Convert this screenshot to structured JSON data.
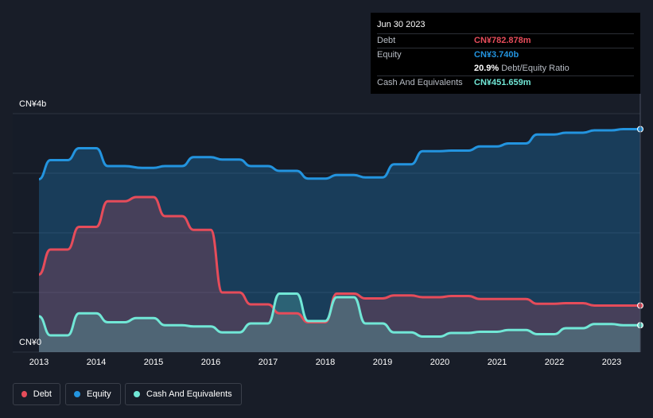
{
  "tooltip": {
    "date": "Jun 30 2023",
    "debt_label": "Debt",
    "debt_value": "CN¥782.878m",
    "equity_label": "Equity",
    "equity_value": "CN¥3.740b",
    "ratio_value": "20.9%",
    "ratio_label": "Debt/Equity Ratio",
    "cash_label": "Cash And Equivalents",
    "cash_value": "CN¥451.659m"
  },
  "colors": {
    "debt": "#e64c5a",
    "equity": "#2394df",
    "cash": "#71e7d6",
    "grid": "#2c3340"
  },
  "legend": {
    "debt": "Debt",
    "equity": "Equity",
    "cash": "Cash And Equivalents"
  },
  "chart_data": {
    "type": "area",
    "y_top_label": "CN¥4b",
    "y_bottom_label": "CN¥0",
    "ylim": [
      0,
      4.0
    ],
    "xlim": [
      2013.0,
      2023.5
    ],
    "x_ticks": [
      "2013",
      "2014",
      "2015",
      "2016",
      "2017",
      "2018",
      "2019",
      "2020",
      "2021",
      "2022",
      "2023"
    ],
    "series": [
      {
        "name": "Equity",
        "x": [
          2013.0,
          2013.2,
          2013.5,
          2013.7,
          2014.0,
          2014.2,
          2014.5,
          2014.8,
          2015.0,
          2015.2,
          2015.5,
          2015.7,
          2016.0,
          2016.2,
          2016.5,
          2016.7,
          2017.0,
          2017.2,
          2017.5,
          2017.7,
          2018.0,
          2018.2,
          2018.5,
          2018.7,
          2019.0,
          2019.2,
          2019.5,
          2019.7,
          2020.0,
          2020.2,
          2020.5,
          2020.7,
          2021.0,
          2021.2,
          2021.5,
          2021.7,
          2022.0,
          2022.2,
          2022.5,
          2022.7,
          2023.0,
          2023.2,
          2023.5
        ],
        "values": [
          2.9,
          3.22,
          3.22,
          3.42,
          3.42,
          3.12,
          3.12,
          3.09,
          3.09,
          3.12,
          3.12,
          3.27,
          3.27,
          3.23,
          3.23,
          3.12,
          3.12,
          3.04,
          3.04,
          2.91,
          2.91,
          2.97,
          2.97,
          2.93,
          2.93,
          3.15,
          3.15,
          3.37,
          3.37,
          3.38,
          3.38,
          3.45,
          3.45,
          3.5,
          3.5,
          3.65,
          3.65,
          3.68,
          3.68,
          3.72,
          3.72,
          3.74,
          3.74
        ]
      },
      {
        "name": "Debt",
        "x": [
          2013.0,
          2013.2,
          2013.5,
          2013.7,
          2014.0,
          2014.2,
          2014.5,
          2014.7,
          2015.0,
          2015.2,
          2015.5,
          2015.7,
          2016.0,
          2016.2,
          2016.5,
          2016.7,
          2017.0,
          2017.2,
          2017.5,
          2017.7,
          2018.0,
          2018.2,
          2018.5,
          2018.7,
          2019.0,
          2019.2,
          2019.5,
          2019.7,
          2020.0,
          2020.2,
          2020.5,
          2020.7,
          2021.0,
          2021.2,
          2021.5,
          2021.7,
          2022.0,
          2022.2,
          2022.5,
          2022.7,
          2023.0,
          2023.2,
          2023.5
        ],
        "values": [
          1.3,
          1.72,
          1.72,
          2.1,
          2.1,
          2.53,
          2.53,
          2.6,
          2.6,
          2.28,
          2.28,
          2.05,
          2.05,
          1.0,
          1.0,
          0.8,
          0.8,
          0.65,
          0.65,
          0.5,
          0.5,
          0.98,
          0.98,
          0.9,
          0.9,
          0.95,
          0.95,
          0.92,
          0.92,
          0.94,
          0.94,
          0.89,
          0.89,
          0.89,
          0.89,
          0.81,
          0.81,
          0.82,
          0.82,
          0.78,
          0.78,
          0.78,
          0.78
        ]
      },
      {
        "name": "Cash And Equivalents",
        "x": [
          2013.0,
          2013.2,
          2013.5,
          2013.7,
          2014.0,
          2014.2,
          2014.5,
          2014.7,
          2015.0,
          2015.2,
          2015.5,
          2015.7,
          2016.0,
          2016.2,
          2016.5,
          2016.7,
          2017.0,
          2017.2,
          2017.5,
          2017.7,
          2018.0,
          2018.2,
          2018.5,
          2018.7,
          2019.0,
          2019.2,
          2019.5,
          2019.7,
          2020.0,
          2020.2,
          2020.5,
          2020.7,
          2021.0,
          2021.2,
          2021.5,
          2021.7,
          2022.0,
          2022.2,
          2022.5,
          2022.7,
          2023.0,
          2023.2,
          2023.5
        ],
        "values": [
          0.6,
          0.28,
          0.28,
          0.65,
          0.65,
          0.5,
          0.5,
          0.57,
          0.57,
          0.45,
          0.45,
          0.43,
          0.43,
          0.33,
          0.33,
          0.48,
          0.48,
          0.98,
          0.98,
          0.52,
          0.52,
          0.92,
          0.92,
          0.48,
          0.48,
          0.33,
          0.33,
          0.26,
          0.26,
          0.32,
          0.32,
          0.34,
          0.34,
          0.37,
          0.37,
          0.3,
          0.3,
          0.4,
          0.4,
          0.47,
          0.47,
          0.45,
          0.45
        ]
      }
    ],
    "grid": true,
    "legend_position": "bottom-left"
  }
}
